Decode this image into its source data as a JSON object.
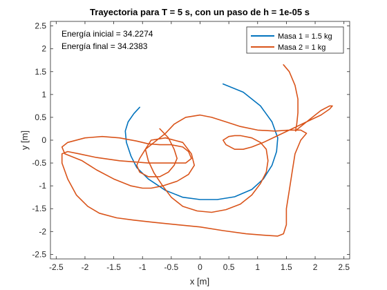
{
  "chart_data": {
    "type": "line",
    "title": "Trayectoria para T = 5 s, con un paso de h = 1e-05 s",
    "xlabel": "x [m]",
    "ylabel": "y [m]",
    "xlim": [
      -2.6,
      2.6
    ],
    "ylim": [
      -2.6,
      2.6
    ],
    "xticks": [
      -2.5,
      -2,
      -1.5,
      -1,
      -0.5,
      0,
      0.5,
      1,
      1.5,
      2,
      2.5
    ],
    "xtick_labels": [
      "-2.5",
      "-2",
      "-1.5",
      "-1",
      "-0.5",
      "0",
      "0.5",
      "1",
      "1.5",
      "2",
      "2.5"
    ],
    "yticks": [
      -2.5,
      -2,
      -1.5,
      -1,
      -0.5,
      0,
      0.5,
      1,
      1.5,
      2,
      2.5
    ],
    "ytick_labels": [
      "-2.5",
      "-2",
      "-1.5",
      "-1",
      "-0.5",
      "0",
      "0.5",
      "1",
      "1.5",
      "2",
      "2.5"
    ],
    "grid": false,
    "legend_position": "top-right",
    "annotations": [
      "Energía inicial = 34.2274",
      "Energía final = 34.2383"
    ],
    "series": [
      {
        "name": "Masa 1 = 1.5 kg",
        "color": "#0072BD",
        "x": [
          0.4,
          0.75,
          1.05,
          1.25,
          1.35,
          1.33,
          1.25,
          1.1,
          0.9,
          0.6,
          0.3,
          0.0,
          -0.3,
          -0.6,
          -0.9,
          -1.1,
          -1.2,
          -1.28,
          -1.3,
          -1.25,
          -1.15,
          -1.05
        ],
        "y": [
          1.23,
          1.05,
          0.75,
          0.4,
          0.05,
          -0.25,
          -0.55,
          -0.85,
          -1.08,
          -1.24,
          -1.3,
          -1.3,
          -1.25,
          -1.1,
          -0.85,
          -0.6,
          -0.35,
          -0.05,
          0.2,
          0.4,
          0.58,
          0.72
        ]
      },
      {
        "name": "Masa 2 = 1 kg",
        "color": "#D95319",
        "x": [
          1.45,
          1.55,
          1.65,
          1.7,
          1.7,
          1.68,
          1.66,
          1.7,
          1.9,
          2.1,
          2.25,
          2.3,
          2.25,
          2.1,
          1.85,
          1.6,
          1.35,
          1.1,
          0.9,
          0.75,
          0.6,
          0.45,
          0.4,
          0.5,
          0.6,
          0.7,
          0.9,
          1.05,
          1.15,
          1.18,
          1.15,
          1.05,
          0.9,
          0.7,
          0.45,
          0.2,
          -0.05,
          -0.3,
          -0.5,
          -0.65,
          -0.8,
          -0.9,
          -0.95,
          -0.85,
          -0.6,
          -0.3,
          -0.15,
          -0.1,
          -0.2,
          -0.4,
          -0.65,
          -0.85,
          -1.0,
          -1.2,
          -1.5,
          -1.8,
          -2.05,
          -2.35,
          -2.4,
          -2.3,
          -2.0,
          -1.7,
          -1.4,
          -1.1,
          -0.9,
          -0.7,
          -0.5,
          -0.3,
          -0.2,
          -0.15,
          -0.25,
          -0.5,
          -0.9,
          -1.4,
          -1.8,
          -2.1,
          -2.3,
          -2.4,
          -2.4,
          -2.3,
          -2.15,
          -1.95,
          -1.75,
          -1.45,
          -1.15,
          -0.8,
          -0.4,
          0.0,
          0.4,
          0.8,
          1.1,
          1.35,
          1.45,
          1.5,
          1.5,
          1.55,
          1.6,
          1.65,
          1.75,
          1.85,
          1.75,
          1.55,
          1.3,
          1.0,
          0.7,
          0.45,
          0.2,
          0.0,
          -0.25,
          -0.45,
          -0.6,
          -0.75,
          -0.95,
          -1.05,
          -1.1,
          -1.05,
          -0.9,
          -0.7,
          -0.55,
          -0.45,
          -0.4,
          -0.45,
          -0.55,
          -0.7
        ],
        "y": [
          1.65,
          1.5,
          1.2,
          0.9,
          0.6,
          0.35,
          0.2,
          0.25,
          0.45,
          0.65,
          0.75,
          0.75,
          0.68,
          0.55,
          0.4,
          0.25,
          0.1,
          -0.05,
          -0.15,
          -0.2,
          -0.2,
          -0.1,
          0.0,
          0.08,
          0.1,
          0.1,
          0.05,
          -0.05,
          -0.2,
          -0.45,
          -0.7,
          -0.95,
          -1.2,
          -1.4,
          -1.52,
          -1.58,
          -1.55,
          -1.45,
          -1.25,
          -1.0,
          -0.72,
          -0.45,
          -0.2,
          0.0,
          0.05,
          -0.05,
          -0.3,
          -0.55,
          -0.75,
          -0.9,
          -1.0,
          -1.05,
          -1.05,
          -1.0,
          -0.85,
          -0.65,
          -0.45,
          -0.3,
          -0.15,
          -0.05,
          0.05,
          0.08,
          0.05,
          -0.02,
          -0.08,
          -0.1,
          -0.1,
          -0.15,
          -0.25,
          -0.4,
          -0.5,
          -0.5,
          -0.5,
          -0.45,
          -0.38,
          -0.3,
          -0.25,
          -0.3,
          -0.5,
          -0.85,
          -1.2,
          -1.45,
          -1.6,
          -1.7,
          -1.75,
          -1.8,
          -1.85,
          -1.9,
          -1.98,
          -2.05,
          -2.08,
          -2.1,
          -2.05,
          -1.85,
          -1.5,
          -1.1,
          -0.7,
          -0.3,
          0.0,
          0.15,
          0.22,
          0.22,
          0.2,
          0.22,
          0.3,
          0.4,
          0.5,
          0.55,
          0.5,
          0.35,
          0.15,
          0.0,
          -0.2,
          -0.4,
          -0.55,
          -0.7,
          -0.8,
          -0.8,
          -0.7,
          -0.55,
          -0.4,
          -0.2,
          0.05,
          0.25
        ]
      }
    ]
  }
}
